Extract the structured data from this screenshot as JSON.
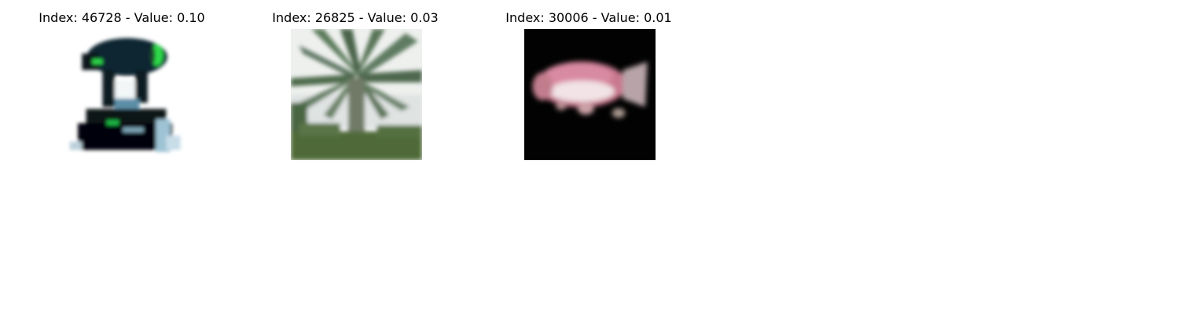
{
  "panels": [
    {
      "title": "Index: 46728 - Value: 0.10",
      "image_subject": "projector",
      "colors": {
        "body": "#0a141a",
        "accent": "#2fd84a",
        "bg": "#ffffff"
      }
    },
    {
      "title": "Index: 26825 - Value: 0.03",
      "image_subject": "palm-tree",
      "colors": {
        "sky": "#eef0ee",
        "leaf": "#4e6a4c",
        "ground": "#4f6b38"
      }
    },
    {
      "title": "Index: 30006 - Value: 0.01",
      "image_subject": "fish",
      "colors": {
        "bg": "#020202",
        "body": "#d4839a",
        "belly": "#f2e6e8"
      }
    }
  ]
}
